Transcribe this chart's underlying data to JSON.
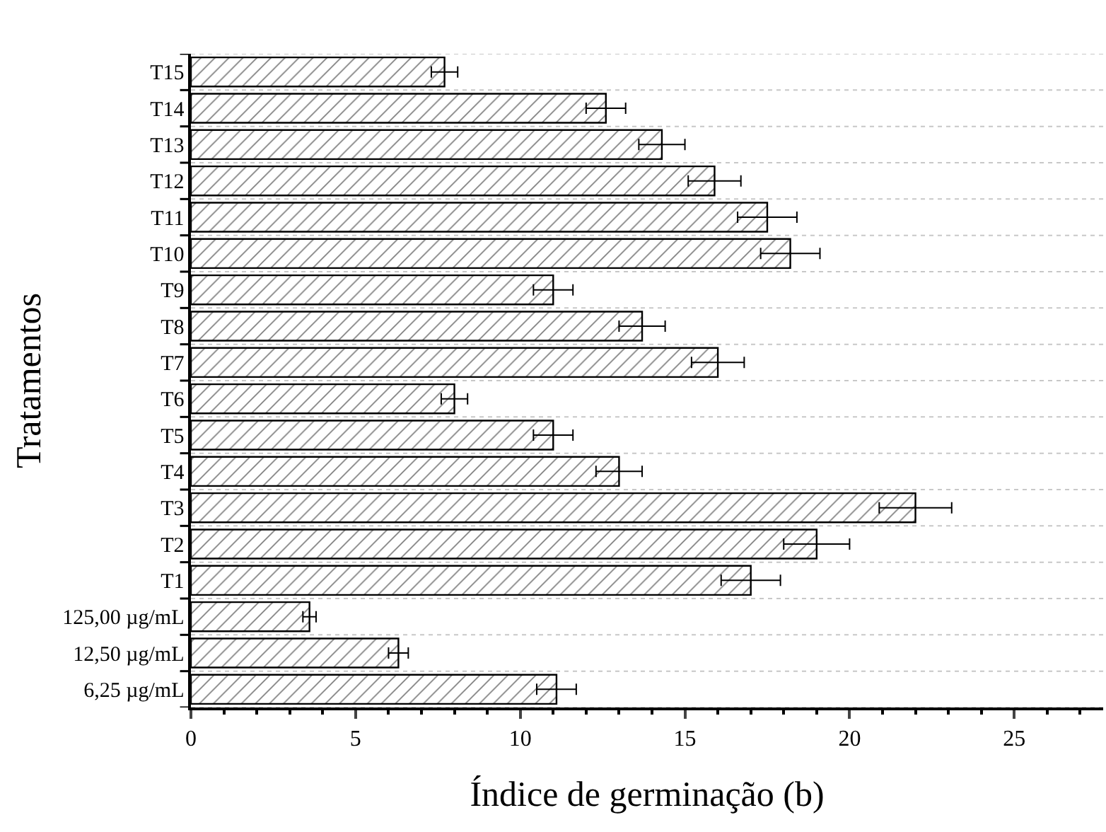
{
  "chart_data": {
    "type": "bar",
    "orientation": "horizontal",
    "xlabel": "Índice de germinação (b)",
    "ylabel": "Tratamentos",
    "categories": [
      "T15",
      "T14",
      "T13",
      "T12",
      "T11",
      "T10",
      "T9",
      "T8",
      "T7",
      "T6",
      "T5",
      "T4",
      "T3",
      "T2",
      "T1",
      "125,00 µg/mL",
      "12,50 µg/mL",
      "6,25 µg/mL"
    ],
    "values": [
      7.7,
      12.6,
      14.3,
      15.9,
      17.5,
      18.2,
      11.0,
      13.7,
      16.0,
      8.0,
      11.0,
      13.0,
      22.0,
      19.0,
      17.0,
      3.6,
      6.3,
      11.1
    ],
    "errors": [
      0.4,
      0.6,
      0.7,
      0.8,
      0.9,
      0.9,
      0.6,
      0.7,
      0.8,
      0.4,
      0.6,
      0.7,
      1.1,
      1.0,
      0.9,
      0.2,
      0.3,
      0.6
    ],
    "color": "#000000",
    "xlim": [
      0,
      27.7
    ],
    "xticks": [
      0,
      5,
      10,
      15,
      20,
      25
    ],
    "grid": "y",
    "legend": false
  }
}
